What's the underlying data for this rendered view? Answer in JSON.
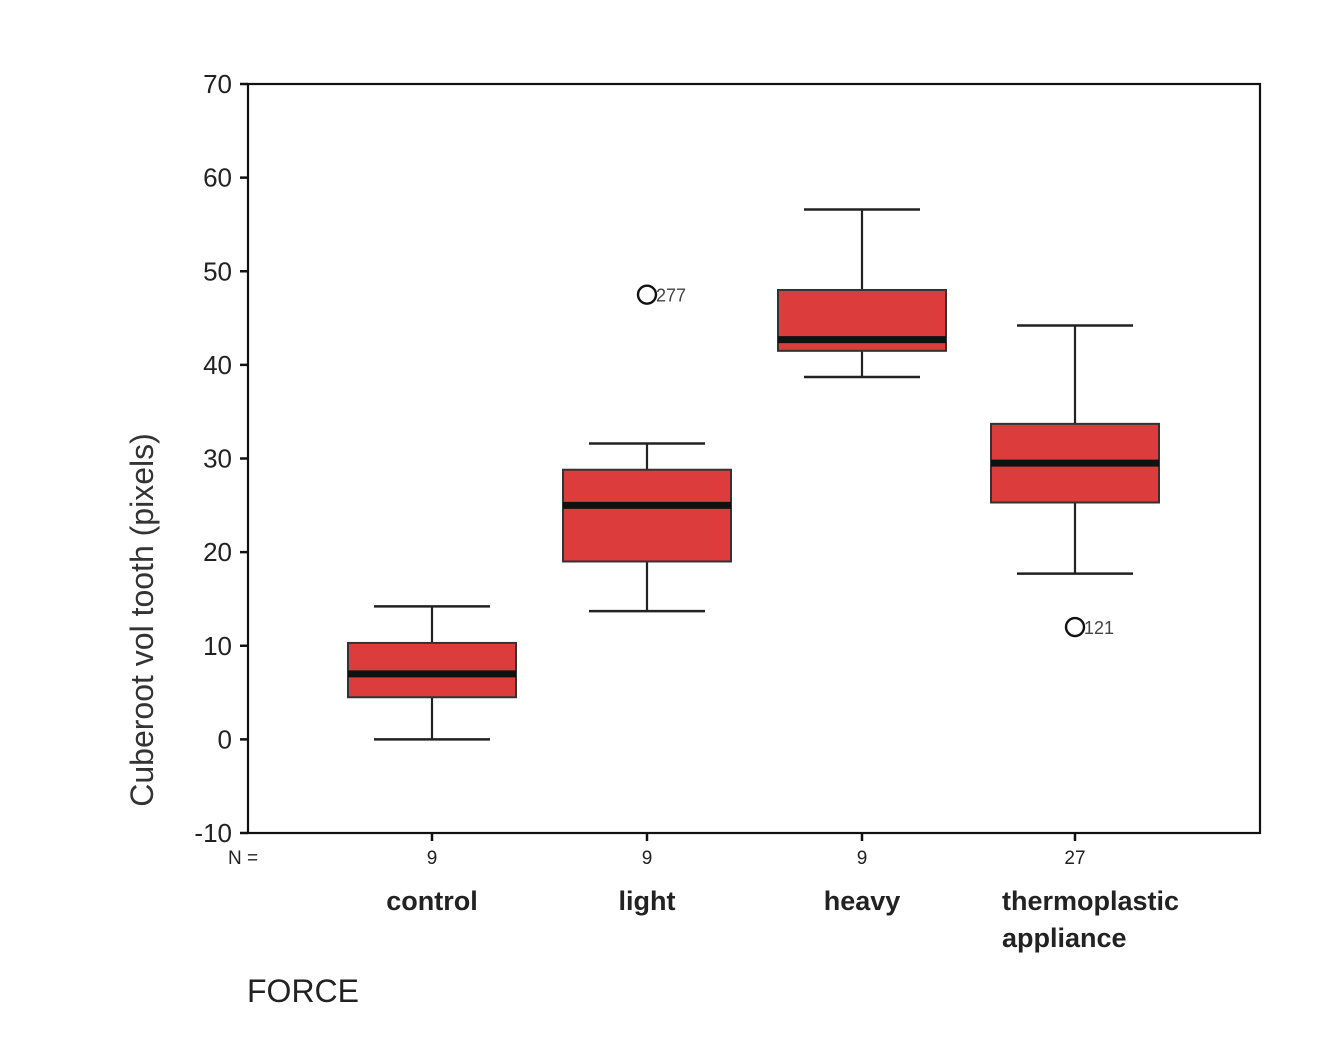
{
  "chart_data": {
    "type": "boxplot",
    "title": "",
    "xlabel": "FORCE",
    "ylabel": "Cuberoot vol tooth  (pixels)",
    "ylim": [
      -10,
      70
    ],
    "yticks": [
      -10,
      0,
      10,
      20,
      30,
      40,
      50,
      60,
      70
    ],
    "grid": false,
    "n_label": "N =",
    "categories": [
      {
        "label": [
          "control"
        ],
        "n": "9",
        "whisker_low": 0,
        "q1": 4.5,
        "median": 7,
        "q3": 10.3,
        "whisker_high": 14.2,
        "outliers": []
      },
      {
        "label": [
          "light"
        ],
        "n": "9",
        "whisker_low": 13.7,
        "q1": 19,
        "median": 25,
        "q3": 28.8,
        "whisker_high": 31.6,
        "outliers": [
          {
            "value": 47.5,
            "label": "277"
          }
        ]
      },
      {
        "label": [
          "heavy"
        ],
        "n": "9",
        "whisker_low": 38.7,
        "q1": 41.5,
        "median": 42.7,
        "q3": 48,
        "whisker_high": 56.6,
        "outliers": []
      },
      {
        "label": [
          "thermoplastic",
          "appliance"
        ],
        "n": "27",
        "whisker_low": 17.7,
        "q1": 25.3,
        "median": 29.5,
        "q3": 33.7,
        "whisker_high": 44.2,
        "outliers": [
          {
            "value": 12,
            "label": "121"
          }
        ]
      }
    ],
    "colors": {
      "box_fill": "#dc3c3c",
      "box_stroke": "#333333",
      "median": "#111111",
      "axis": "#111111",
      "text": "#222222"
    }
  }
}
